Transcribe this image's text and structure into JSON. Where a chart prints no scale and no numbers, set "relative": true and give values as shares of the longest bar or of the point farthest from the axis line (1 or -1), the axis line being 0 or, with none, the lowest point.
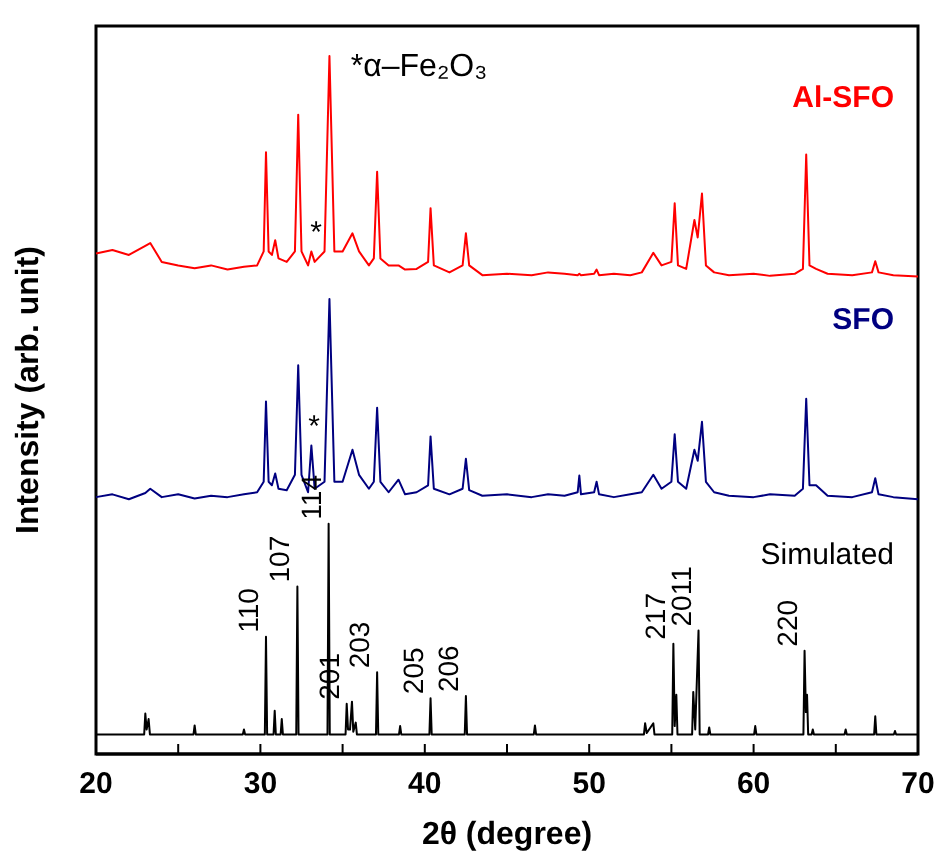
{
  "chart_data": {
    "type": "line",
    "relative": true,
    "xlabel": "2θ (degree)",
    "ylabel": "Intensity (arb. unit)",
    "xlim": [
      20,
      70
    ],
    "xticks": [
      20,
      {
        "value": 25,
        "label": null
      },
      30,
      {
        "value": 35,
        "label": null
      },
      40,
      {
        "value": 45,
        "label": null
      },
      50,
      {
        "value": 55,
        "label": null
      },
      60,
      {
        "value": 65,
        "label": null
      },
      70
    ],
    "legend": false,
    "grid": false,
    "series": [
      {
        "name": "Al-SFO",
        "color": "#ff0000",
        "x": [
          20,
          21,
          22,
          23,
          23.3,
          24,
          25,
          26,
          27,
          28,
          29,
          29.8,
          30.2,
          30.34,
          30.5,
          30.7,
          30.9,
          31.1,
          31.6,
          32.1,
          32.3,
          32.5,
          32.9,
          33.1,
          33.3,
          33.9,
          34.2,
          34.5,
          35.0,
          35.6,
          36.0,
          36.6,
          36.9,
          37.1,
          37.3,
          37.8,
          38.4,
          38.8,
          39.5,
          40.2,
          40.35,
          40.55,
          41.5,
          42.3,
          42.5,
          42.7,
          43.5,
          45,
          46.5,
          47.5,
          48.5,
          49.3,
          49.4,
          49.5,
          50.3,
          50.45,
          50.6,
          51.5,
          52.5,
          53.2,
          53.9,
          54.4,
          55.0,
          55.2,
          55.4,
          55.9,
          56.4,
          56.6,
          56.86,
          57.1,
          57.6,
          58.5,
          60,
          61,
          62.5,
          63.0,
          63.2,
          63.4,
          63.8,
          64.5,
          66,
          67.2,
          67.4,
          67.6,
          68.5,
          70
        ],
        "values": [
          0.717,
          0.722,
          0.715,
          0.728,
          0.732,
          0.705,
          0.7,
          0.696,
          0.7,
          0.694,
          0.698,
          0.7,
          0.72,
          0.862,
          0.72,
          0.715,
          0.736,
          0.71,
          0.705,
          0.72,
          0.916,
          0.72,
          0.7,
          0.72,
          0.705,
          0.72,
          1,
          0.72,
          0.72,
          0.746,
          0.72,
          0.7,
          0.71,
          0.834,
          0.71,
          0.7,
          0.7,
          0.694,
          0.695,
          0.705,
          0.782,
          0.7,
          0.69,
          0.7,
          0.746,
          0.7,
          0.686,
          0.688,
          0.686,
          0.69,
          0.688,
          0.686,
          0.688,
          0.686,
          0.688,
          0.694,
          0.686,
          0.688,
          0.686,
          0.69,
          0.718,
          0.7,
          0.705,
          0.789,
          0.7,
          0.695,
          0.765,
          0.74,
          0.803,
          0.7,
          0.69,
          0.686,
          0.688,
          0.685,
          0.688,
          0.695,
          0.859,
          0.7,
          0.695,
          0.688,
          0.686,
          0.69,
          0.706,
          0.69,
          0.686,
          0.684
        ]
      },
      {
        "name": "SFO",
        "color": "#000080",
        "x": [
          20,
          21,
          22,
          23,
          23.3,
          24,
          25,
          26,
          27,
          28,
          29,
          29.8,
          30.2,
          30.34,
          30.5,
          30.7,
          30.9,
          31.1,
          31.6,
          32.1,
          32.3,
          32.5,
          32.9,
          33.1,
          33.3,
          33.9,
          34.2,
          34.5,
          35.0,
          35.6,
          36.0,
          36.6,
          36.9,
          37.1,
          37.3,
          37.8,
          38.4,
          38.8,
          39.5,
          40.2,
          40.35,
          40.55,
          41.5,
          42.3,
          42.5,
          42.7,
          43.5,
          45,
          46.5,
          47.5,
          48.5,
          49.3,
          49.4,
          49.5,
          50.3,
          50.45,
          50.6,
          51.5,
          52.5,
          53.2,
          53.9,
          54.4,
          55.0,
          55.2,
          55.4,
          55.9,
          56.4,
          56.6,
          56.86,
          57.1,
          57.6,
          58.5,
          60,
          61,
          62.5,
          63.0,
          63.2,
          63.4,
          63.8,
          64.5,
          66,
          67.2,
          67.4,
          67.6,
          68.5,
          70
        ],
        "values": [
          0.368,
          0.372,
          0.365,
          0.374,
          0.38,
          0.368,
          0.372,
          0.366,
          0.37,
          0.368,
          0.372,
          0.375,
          0.39,
          0.505,
          0.39,
          0.385,
          0.402,
          0.38,
          0.378,
          0.4,
          0.557,
          0.4,
          0.375,
          0.442,
          0.38,
          0.39,
          0.652,
          0.39,
          0.39,
          0.436,
          0.4,
          0.38,
          0.39,
          0.496,
          0.39,
          0.375,
          0.393,
          0.372,
          0.375,
          0.385,
          0.455,
          0.38,
          0.372,
          0.38,
          0.423,
          0.378,
          0.37,
          0.372,
          0.368,
          0.372,
          0.37,
          0.375,
          0.399,
          0.372,
          0.375,
          0.39,
          0.372,
          0.368,
          0.372,
          0.375,
          0.4,
          0.38,
          0.39,
          0.458,
          0.39,
          0.38,
          0.436,
          0.42,
          0.476,
          0.39,
          0.375,
          0.37,
          0.368,
          0.372,
          0.37,
          0.38,
          0.509,
          0.385,
          0.385,
          0.37,
          0.368,
          0.375,
          0.395,
          0.372,
          0.368,
          0.365
        ]
      },
      {
        "name": "Simulated",
        "color": "#000000",
        "x": [
          20,
          22.93,
          23.0,
          23.08,
          23.2,
          23.28,
          25.93,
          26.0,
          26.07,
          28.93,
          29.0,
          29.07,
          30.27,
          30.34,
          30.41,
          30.8,
          30.87,
          30.94,
          31.23,
          31.3,
          31.37,
          32.18,
          32.25,
          32.32,
          34.08,
          34.15,
          34.22,
          35.18,
          35.25,
          35.33,
          35.45,
          35.57,
          35.65,
          35.8,
          35.87,
          37.03,
          37.1,
          37.17,
          38.43,
          38.5,
          38.57,
          40.28,
          40.35,
          40.42,
          42.43,
          42.5,
          42.57,
          46.63,
          46.7,
          46.77,
          53.33,
          53.4,
          53.5,
          53.9,
          53.97,
          55.05,
          55.12,
          55.2,
          55.3,
          55.37,
          56.26,
          56.33,
          56.45,
          56.65,
          56.72,
          57.23,
          57.3,
          57.37,
          60.03,
          60.1,
          60.17,
          63.03,
          63.1,
          63.18,
          63.25,
          63.32,
          63.53,
          63.6,
          63.67,
          65.53,
          65.6,
          65.67,
          67.33,
          67.4,
          67.47,
          68.53,
          68.6,
          68.67,
          70
        ],
        "values": [
          0.028,
          0.028,
          0.058,
          0.035,
          0.05,
          0.028,
          0.028,
          0.041,
          0.028,
          0.028,
          0.035,
          0.028,
          0.028,
          0.168,
          0.028,
          0.028,
          0.062,
          0.028,
          0.028,
          0.05,
          0.028,
          0.028,
          0.24,
          0.028,
          0.028,
          0.33,
          0.028,
          0.028,
          0.072,
          0.035,
          0.035,
          0.075,
          0.032,
          0.045,
          0.028,
          0.028,
          0.117,
          0.028,
          0.028,
          0.04,
          0.028,
          0.028,
          0.08,
          0.028,
          0.028,
          0.083,
          0.028,
          0.028,
          0.041,
          0.028,
          0.028,
          0.044,
          0.03,
          0.044,
          0.028,
          0.028,
          0.158,
          0.04,
          0.085,
          0.028,
          0.028,
          0.089,
          0.035,
          0.177,
          0.028,
          0.028,
          0.038,
          0.028,
          0.028,
          0.04,
          0.028,
          0.028,
          0.148,
          0.06,
          0.085,
          0.028,
          0.028,
          0.035,
          0.028,
          0.028,
          0.035,
          0.028,
          0.028,
          0.054,
          0.028,
          0.028,
          0.033,
          0.028,
          0.028
        ]
      }
    ],
    "annotations": [
      "*α–Fe₂O₃",
      "*",
      "*",
      {
        "text": "110",
        "x": 30.34,
        "y": 0.168
      },
      {
        "text": "107",
        "x": 32.25,
        "y": 0.24
      },
      {
        "text": "114",
        "x": 34.15,
        "y": 0.33
      },
      {
        "text": "201",
        "x": 35.25,
        "y": 0.072
      },
      {
        "text": "203",
        "x": 37.1,
        "y": 0.117
      },
      {
        "text": "205",
        "x": 40.35,
        "y": 0.08
      },
      {
        "text": "206",
        "x": 42.5,
        "y": 0.083
      },
      {
        "text": "217",
        "x": 55.12,
        "y": 0.158
      },
      {
        "text": "2011",
        "x": 56.65,
        "y": 0.177
      },
      {
        "text": "220",
        "x": 63.1,
        "y": 0.148
      }
    ]
  }
}
